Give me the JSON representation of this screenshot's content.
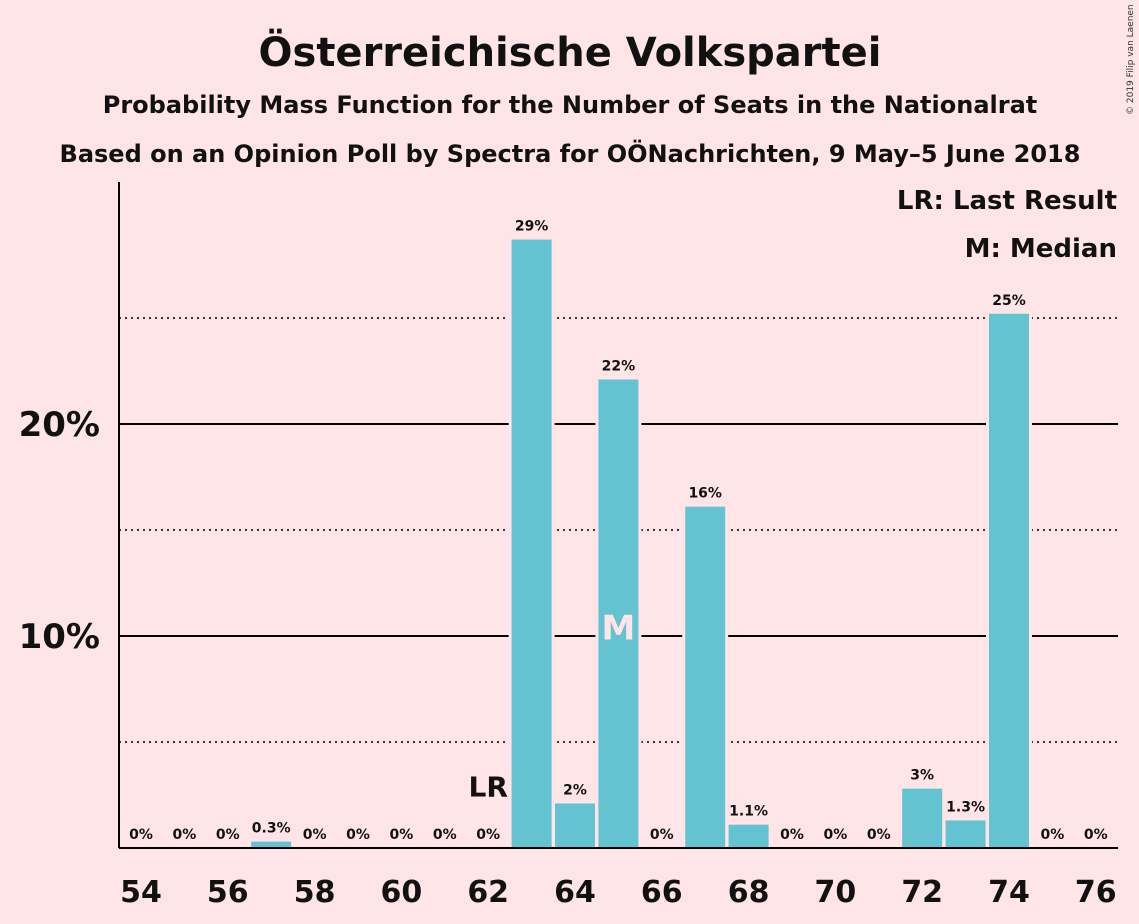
{
  "chart_data": {
    "type": "bar",
    "title": "Österreichische Volkspartei",
    "subtitle1": "Probability Mass Function for the Number of Seats in the Nationalrat",
    "subtitle2": "Based on an Opinion Poll by Spectra for OÖNachrichten, 9 May–5 June 2018",
    "copyright": "© 2019 Filip van Laenen",
    "legend": {
      "lr": "LR: Last Result",
      "median": "M: Median",
      "placement": "top-right"
    },
    "bar_color": "#63c3d0",
    "ylim": [
      0,
      31
    ],
    "yticks": [
      {
        "value": 10,
        "label": "10%"
      },
      {
        "value": 20,
        "label": "20%"
      }
    ],
    "dotted_gridlines": [
      5,
      15,
      25
    ],
    "x": [
      54,
      55,
      56,
      57,
      58,
      59,
      60,
      61,
      62,
      63,
      64,
      65,
      66,
      67,
      68,
      69,
      70,
      71,
      72,
      73,
      74,
      75,
      76
    ],
    "values": [
      0,
      0,
      0,
      0.3,
      0,
      0,
      0,
      0,
      0,
      28.7,
      2.1,
      22.1,
      0,
      16.1,
      1.1,
      0,
      0,
      0,
      2.8,
      1.3,
      25.2,
      0,
      0
    ],
    "labels": [
      "0%",
      "0%",
      "0%",
      "0.3%",
      "0%",
      "0%",
      "0%",
      "0%",
      "0%",
      "29%",
      "2%",
      "22%",
      "0%",
      "16%",
      "1.1%",
      "0%",
      "0%",
      "0%",
      "3%",
      "1.3%",
      "25%",
      "0%",
      "0%"
    ],
    "xtick_labels": [
      "54",
      "56",
      "58",
      "60",
      "62",
      "64",
      "66",
      "68",
      "70",
      "72",
      "74",
      "76"
    ],
    "last_result": {
      "x": 62,
      "label": "LR"
    },
    "median": {
      "x": 65,
      "label": "M"
    }
  }
}
